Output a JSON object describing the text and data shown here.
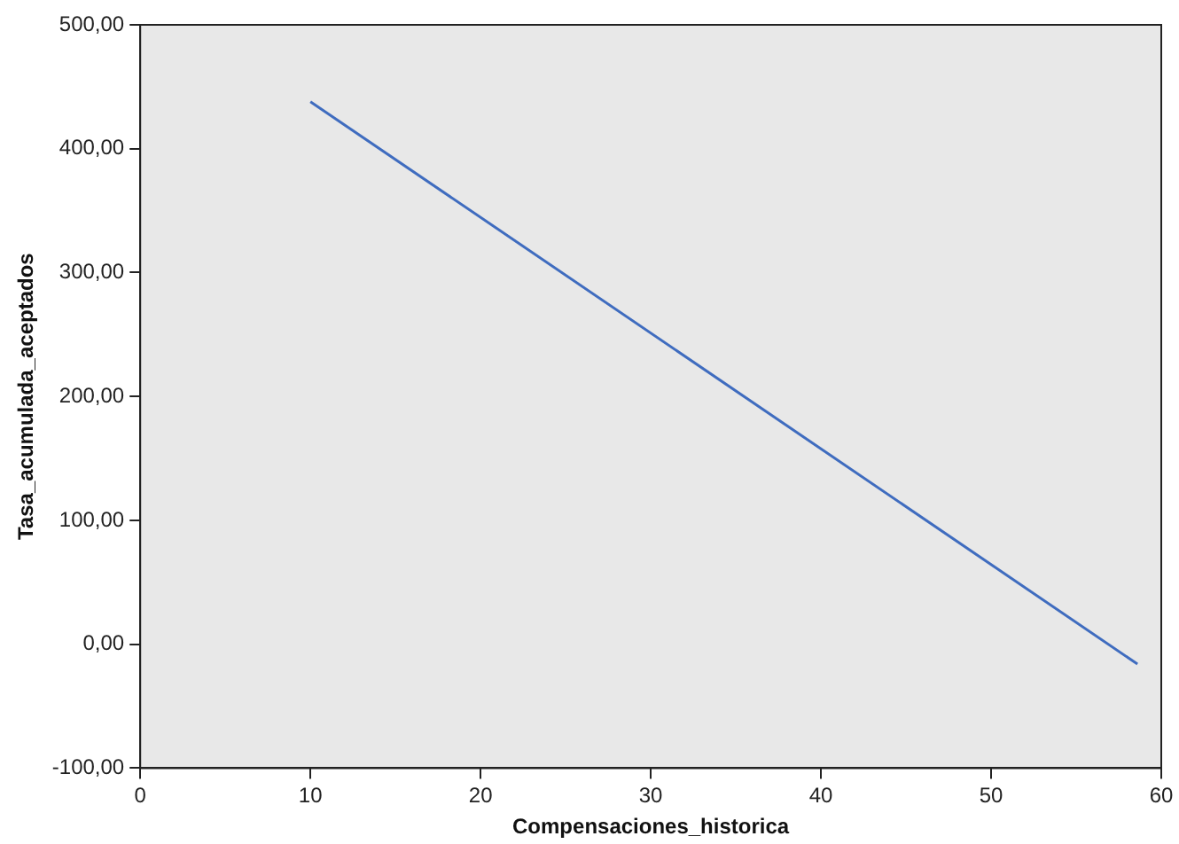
{
  "chart_data": {
    "type": "line",
    "xlabel": "Compensaciones_historica",
    "ylabel": "Tasa_acumulada_aceptados",
    "x": [
      10,
      58.6
    ],
    "series": [
      {
        "color": "#3f6cbf",
        "values": [
          438,
          -16
        ]
      }
    ],
    "xlim": [
      0,
      60
    ],
    "xticks": [
      0,
      10,
      20,
      30,
      40,
      50,
      60
    ],
    "ylim": [
      -100,
      500
    ],
    "yticks": [
      {
        "value": -100,
        "label": "-100,00"
      },
      {
        "value": 0,
        "label": "0,00"
      },
      {
        "value": 100,
        "label": "100,00"
      },
      {
        "value": 200,
        "label": "200,00"
      },
      {
        "value": 300,
        "label": "300,00"
      },
      {
        "value": 400,
        "label": "400,00"
      },
      {
        "value": 500,
        "label": "500,00"
      }
    ],
    "grid": false,
    "legend": false,
    "marker": "none",
    "line_style": "solid"
  }
}
